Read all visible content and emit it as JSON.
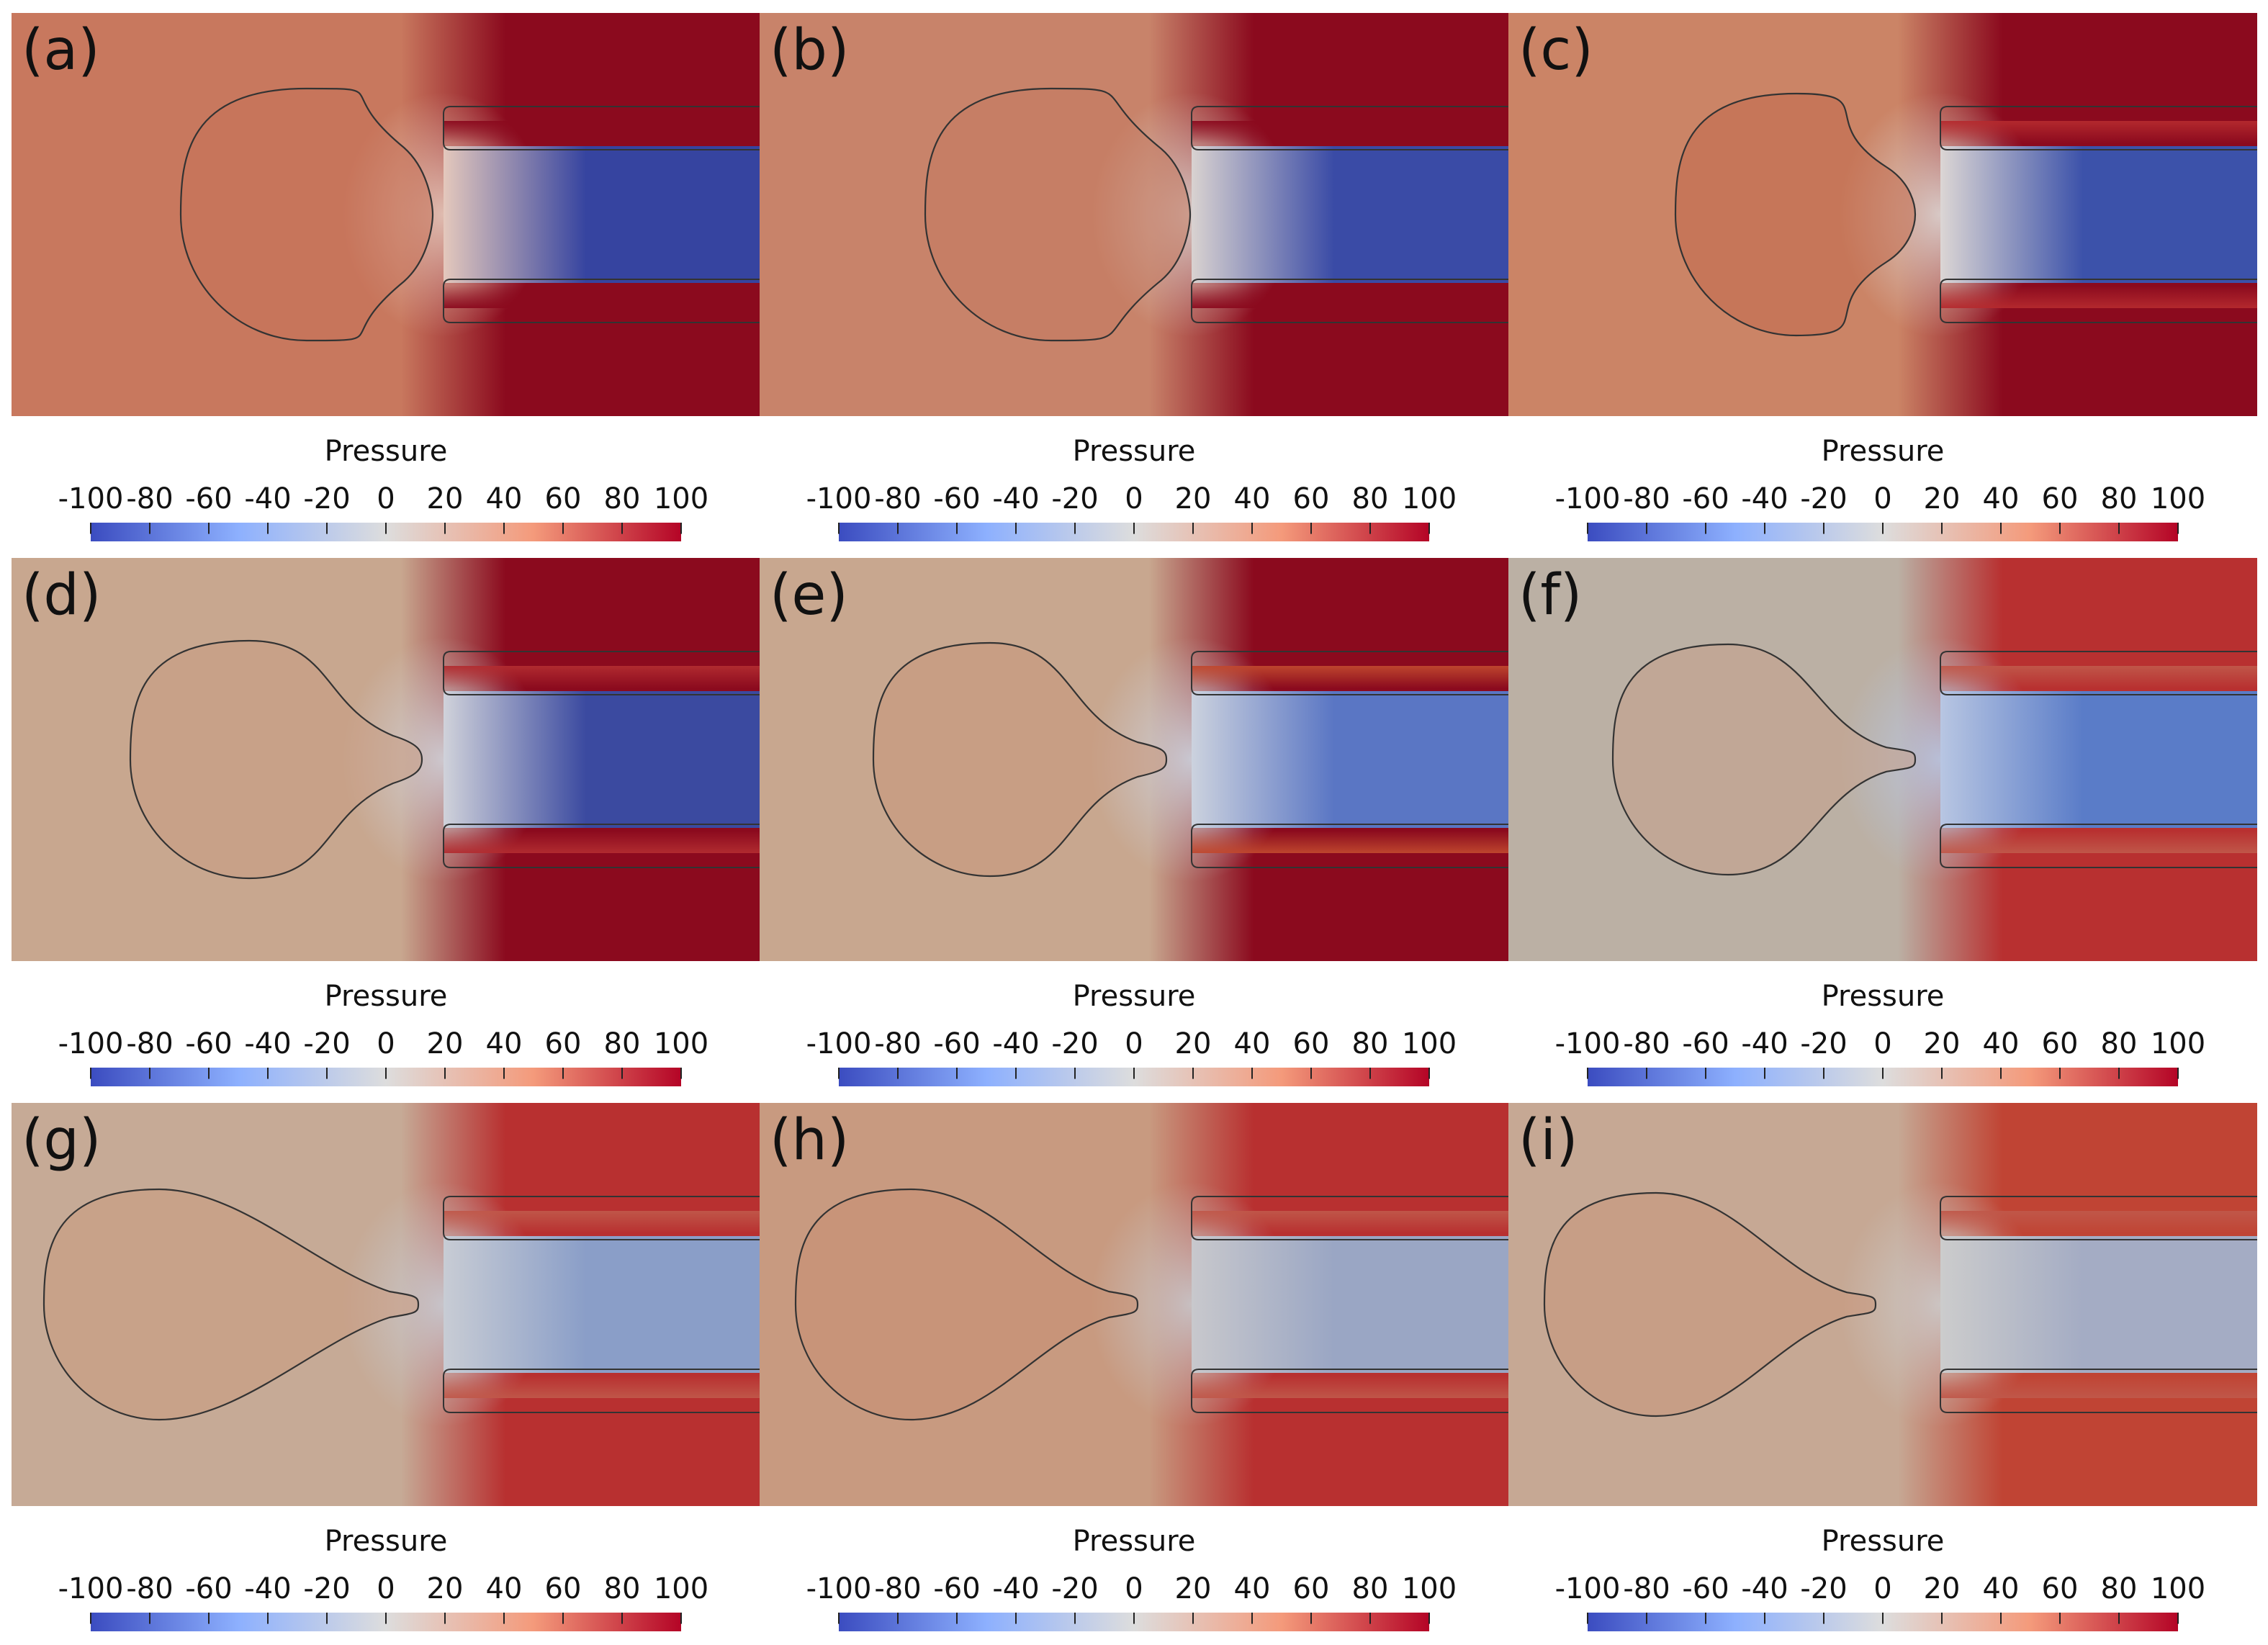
{
  "figure": {
    "colormap": {
      "name": "Cool to Warm",
      "stops": [
        "#3b4cc0",
        "#8db0fe",
        "#dddddd",
        "#f49a7b",
        "#b40426"
      ],
      "saturation_color": "#8b0a1e"
    },
    "colorbar": {
      "title": "Pressure",
      "range": [
        -100,
        100
      ],
      "ticks": [
        "-100",
        "-80",
        "-60",
        "-40",
        "-20",
        "0",
        "20",
        "40",
        "60",
        "80",
        "100"
      ]
    },
    "panels": [
      {
        "label": "(a)",
        "colorbar_title": "Pressure",
        "far_field": "#c8785e",
        "bubble_fill": "#c77259",
        "throat": "#e4c8bc",
        "channel_center": "#3644a0",
        "channel_wall": "#8b0a1e",
        "wall_outer": "#8b0a1e"
      },
      {
        "label": "(b)",
        "colorbar_title": "Pressure",
        "far_field": "#c8836a",
        "bubble_fill": "#c57a60",
        "throat": "#d9d2d0",
        "channel_center": "#3a4ba6",
        "channel_wall": "#8b0a1e",
        "wall_outer": "#8b0a1e"
      },
      {
        "label": "(c)",
        "colorbar_title": "Pressure",
        "far_field": "#cb8466",
        "bubble_fill": "#c26b4f",
        "throat": "#dcd6d4",
        "channel_center": "#3c52aa",
        "channel_wall": "#b52a2e",
        "wall_outer": "#8b0a1e"
      },
      {
        "label": "(d)",
        "colorbar_title": "Pressure",
        "far_field": "#c8a78f",
        "bubble_fill": "#c99d84",
        "throat": "#d0d2da",
        "channel_center": "#3b4aa0",
        "channel_wall": "#b22c30",
        "wall_outer": "#8b0a1e"
      },
      {
        "label": "(e)",
        "colorbar_title": "Pressure",
        "far_field": "#c8a78f",
        "bubble_fill": "#c9977c",
        "throat": "#ccd2de",
        "channel_center": "#5a76c4",
        "channel_wall": "#c0482e",
        "wall_outer": "#8b0a1e"
      },
      {
        "label": "(f)",
        "colorbar_title": "Pressure",
        "far_field": "#bbb0a4",
        "bubble_fill": "#c7a08a",
        "throat": "#b8c6e2",
        "channel_center": "#5a7cc8",
        "channel_wall": "#c0584a",
        "wall_outer": "#b83030"
      },
      {
        "label": "(g)",
        "colorbar_title": "Pressure",
        "far_field": "#c6aa96",
        "bubble_fill": "#ca9a80",
        "throat": "#c8ccd4",
        "channel_center": "#8a9ec8",
        "channel_wall": "#c0584a",
        "wall_outer": "#b83030"
      },
      {
        "label": "(h)",
        "colorbar_title": "Pressure",
        "far_field": "#c89a80",
        "bubble_fill": "#c98f72",
        "throat": "#c8c8cc",
        "channel_center": "#9aa6c4",
        "channel_wall": "#c0584a",
        "wall_outer": "#b83030"
      },
      {
        "label": "(i)",
        "colorbar_title": "Pressure",
        "far_field": "#c6a894",
        "bubble_fill": "#c9957a",
        "throat": "#cccccc",
        "channel_center": "#a4acc4",
        "channel_wall": "#c0584a",
        "wall_outer": "#c04434"
      }
    ]
  }
}
